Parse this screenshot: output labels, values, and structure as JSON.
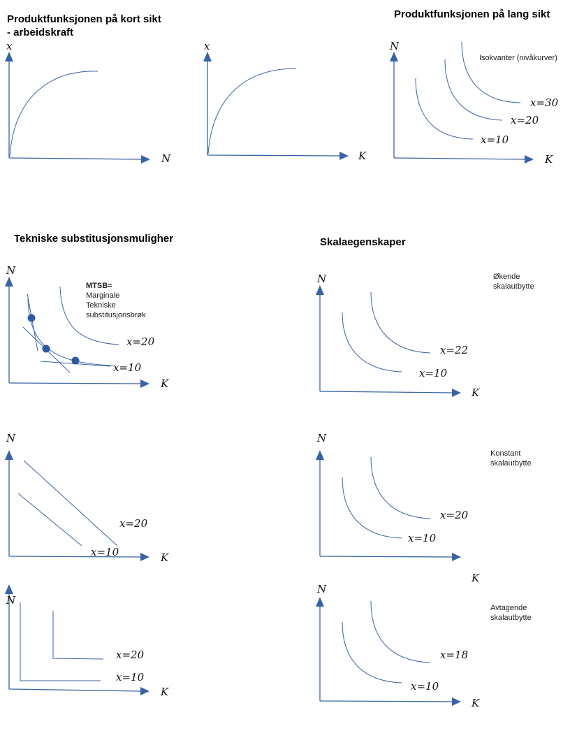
{
  "headings": {
    "short_run": [
      "Produktfunksjonen på kort sikt",
      "- arbeidskraft"
    ],
    "long_run": "Produktfunksjonen på lang sikt",
    "substitution": "Tekniske substitusjonsmuligher",
    "scale": "Skalaegenskaper"
  },
  "notes": {
    "isoquants": "Isokvanter (nivåkurver)",
    "mtsb": [
      "MTSB=",
      "Marginale",
      "Tekniske",
      "substitusjonsbrøk"
    ],
    "increasing": [
      "Økende",
      "skalautbytte"
    ],
    "constant": [
      "Konstant",
      "skalautbytte"
    ],
    "decreasing": [
      "Avtagende",
      "skalautbytte"
    ]
  },
  "axis": {
    "x": "x",
    "N": "N",
    "K": "K"
  },
  "labels": {
    "x30": "30",
    "x20": "20",
    "x10": "10",
    "x22": "22",
    "x18": "18"
  }
}
